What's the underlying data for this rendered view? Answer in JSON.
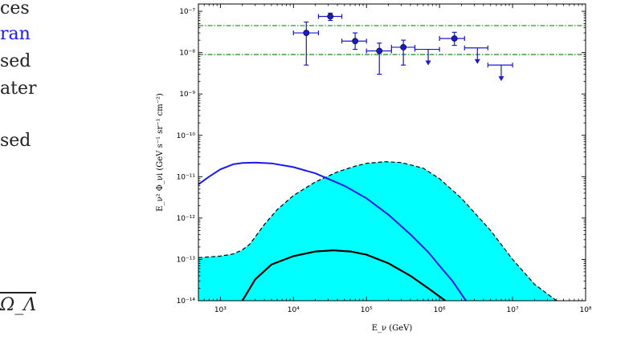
{
  "text_fragments": [
    {
      "text": "ces",
      "color": "#222222"
    },
    {
      "text": "ran",
      "color": "#1a1aff"
    },
    {
      "text": "sed",
      "color": "#222222"
    },
    {
      "text": "ater",
      "color": "#222222"
    },
    {
      "text": "sed",
      "color": "#222222"
    },
    {
      "text": "Ω_Λ",
      "color": "#222222"
    }
  ],
  "chart_data": {
    "type": "line",
    "xlabel": "E_ν (GeV)",
    "ylabel": "E_ν² Φ_νi (GeV s⁻¹ sr⁻¹ cm⁻²)",
    "xscale": "log",
    "yscale": "log",
    "xlim": [
      500,
      100000000
    ],
    "ylim": [
      1e-14,
      1.5e-07
    ],
    "x_ticks": [
      {
        "value": 1000,
        "label": "10³"
      },
      {
        "value": 10000,
        "label": "10⁴"
      },
      {
        "value": 100000,
        "label": "10⁵"
      },
      {
        "value": 1000000,
        "label": "10⁶"
      },
      {
        "value": 10000000,
        "label": "10⁷"
      },
      {
        "value": 100000000,
        "label": "10⁸"
      }
    ],
    "y_ticks": [
      {
        "value": 1e-14,
        "label": "10⁻¹⁴"
      },
      {
        "value": 1e-13,
        "label": "10⁻¹³"
      },
      {
        "value": 1e-12,
        "label": "10⁻¹²"
      },
      {
        "value": 1e-11,
        "label": "10⁻¹¹"
      },
      {
        "value": 1e-10,
        "label": "10⁻¹⁰"
      },
      {
        "value": 1e-09,
        "label": "10⁻⁹"
      },
      {
        "value": 1e-08,
        "label": "10⁻⁸"
      },
      {
        "value": 1e-07,
        "label": "10⁻⁷"
      }
    ],
    "colors": {
      "band_fill": "#00ffff",
      "points": "#1a1acc",
      "blue_curve": "#1a1aee",
      "reference_lines": "#1a8a1a",
      "black_curve": "#000000"
    },
    "reference_lines": [
      4.5e-08,
      9e-09
    ],
    "data_points": [
      {
        "x": 15000,
        "y": 3e-08,
        "x_lo": 10000,
        "x_hi": 22000,
        "y_lo": 5e-09,
        "y_hi": 5.5e-08
      },
      {
        "x": 32000,
        "y": 7.5e-08,
        "x_lo": 22000,
        "x_hi": 46000,
        "y_lo": 6e-08,
        "y_hi": 9e-08
      },
      {
        "x": 70000,
        "y": 1.9e-08,
        "x_lo": 46000,
        "x_hi": 100000,
        "y_lo": 1.2e-08,
        "y_hi": 3e-08
      },
      {
        "x": 150000,
        "y": 1.1e-08,
        "x_lo": 100000,
        "x_hi": 220000,
        "y_lo": 3e-09,
        "y_hi": 1.7e-08
      },
      {
        "x": 320000,
        "y": 1.35e-08,
        "x_lo": 220000,
        "x_hi": 460000,
        "y_lo": 5e-09,
        "y_hi": 2e-08
      },
      {
        "x": 1600000,
        "y": 2.2e-08,
        "x_lo": 1000000,
        "x_hi": 2200000,
        "y_lo": 1.5e-08,
        "y_hi": 3.1e-08
      }
    ],
    "upper_limits": [
      {
        "x": 700000,
        "y": 1.2e-08,
        "x_lo": 460000,
        "x_hi": 1000000
      },
      {
        "x": 3300000,
        "y": 1.3e-08,
        "x_lo": 2200000,
        "x_hi": 4600000
      },
      {
        "x": 7000000,
        "y": 5e-09,
        "x_lo": 4600000,
        "x_hi": 10000000
      }
    ],
    "band": {
      "upper": [
        [
          500,
          1.1e-13
        ],
        [
          1000,
          1.2e-13
        ],
        [
          1500,
          1.35e-13
        ],
        [
          2000,
          1.7e-13
        ],
        [
          2500,
          2.3e-13
        ],
        [
          3000,
          3.5e-13
        ],
        [
          4000,
          7e-13
        ],
        [
          6000,
          1.6e-12
        ],
        [
          10000,
          3.5e-12
        ],
        [
          20000,
          7.5e-12
        ],
        [
          40000,
          1.3e-11
        ],
        [
          70000,
          1.8e-11
        ],
        [
          100000,
          2.1e-11
        ],
        [
          180000,
          2.3e-11
        ],
        [
          300000,
          2.2e-11
        ],
        [
          600000,
          1.6e-11
        ],
        [
          1000000,
          9e-12
        ],
        [
          2000000,
          3e-12
        ],
        [
          5000000,
          5e-13
        ],
        [
          10000000,
          1e-13
        ],
        [
          20000000,
          2.5e-14
        ],
        [
          40000000,
          1e-14
        ]
      ],
      "lower": [
        [
          500,
          1e-14
        ],
        [
          40000000,
          1e-14
        ]
      ]
    },
    "blue_curve": [
      [
        500,
        6.5e-12
      ],
      [
        700,
        1e-11
      ],
      [
        1000,
        1.5e-11
      ],
      [
        1500,
        2e-11
      ],
      [
        2000,
        2.15e-11
      ],
      [
        3000,
        2.2e-11
      ],
      [
        5000,
        2.1e-11
      ],
      [
        10000,
        1.7e-11
      ],
      [
        20000,
        1.2e-11
      ],
      [
        50000,
        6e-12
      ],
      [
        100000,
        3e-12
      ],
      [
        200000,
        1.2e-12
      ],
      [
        400000,
        4e-13
      ],
      [
        700000,
        1.5e-13
      ],
      [
        1000000,
        7e-14
      ],
      [
        1500000,
        3e-14
      ],
      [
        2300000,
        1e-14
      ]
    ],
    "black_curve": [
      [
        2000,
        1e-14
      ],
      [
        3000,
        3.3e-14
      ],
      [
        5000,
        7.5e-14
      ],
      [
        10000,
        1.2e-13
      ],
      [
        20000,
        1.55e-13
      ],
      [
        35000,
        1.65e-13
      ],
      [
        60000,
        1.55e-13
      ],
      [
        100000,
        1.3e-13
      ],
      [
        200000,
        8e-14
      ],
      [
        400000,
        4e-14
      ],
      [
        700000,
        2e-14
      ],
      [
        1200000,
        1e-14
      ]
    ]
  }
}
